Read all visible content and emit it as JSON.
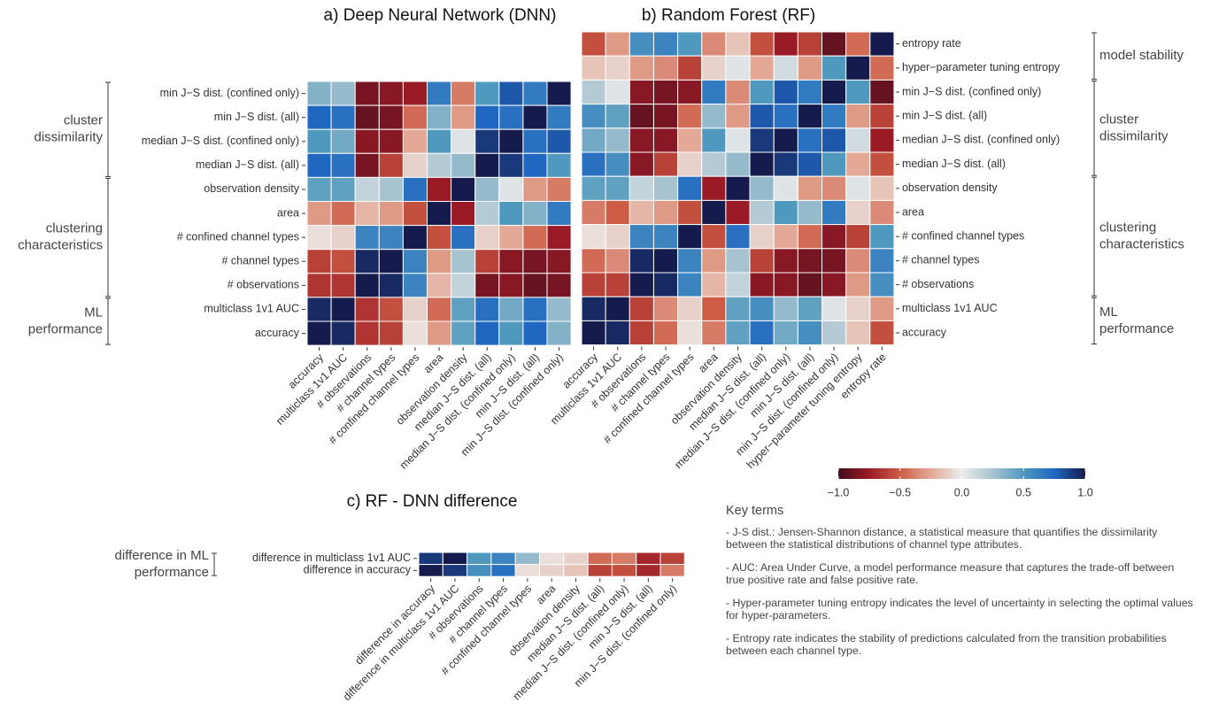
{
  "chart_data": [
    {
      "type": "heatmap",
      "title": "a) Deep Neural Network (DNN)",
      "label_side": "left",
      "rows": [
        "min J−S dist. (confined only)",
        "min J−S dist. (all)",
        "median J−S dist. (confined only)",
        "median J−S dist. (all)",
        "observation density",
        "area",
        "# confined channel types",
        "# channel types",
        "# observations",
        "multiclass 1v1 AUC",
        "accuracy"
      ],
      "columns": [
        "accuracy",
        "multiclass 1v1 AUC",
        "# observations",
        "# channel types",
        "# confined channel types",
        "area",
        "observation density",
        "median J−S dist. (all)",
        "median J−S dist. (confined only)",
        "min J−S dist. (all)",
        "min J−S dist. (confined only)"
      ],
      "groups": [
        {
          "label": [
            "cluster",
            "dissimilarity"
          ],
          "n_rows": 4
        },
        {
          "label": [
            "clustering",
            "characteristics"
          ],
          "n_rows": 5
        },
        {
          "label": [
            "ML",
            "performance"
          ],
          "n_rows": 2
        }
      ],
      "values": [
        [
          0.35,
          0.3,
          -0.85,
          -0.8,
          -0.75,
          0.65,
          -0.4,
          0.5,
          0.8,
          0.65,
          1
        ],
        [
          0.75,
          0.7,
          -0.9,
          -0.85,
          -0.45,
          0.35,
          -0.3,
          0.75,
          0.7,
          1,
          0.65
        ],
        [
          0.5,
          0.4,
          -0.8,
          -0.8,
          -0.25,
          0.5,
          0.05,
          0.9,
          1,
          0.7,
          0.8
        ],
        [
          0.75,
          0.7,
          -0.85,
          -0.6,
          -0.1,
          0.2,
          0.3,
          1,
          0.9,
          0.75,
          0.5
        ],
        [
          0.45,
          0.45,
          0.15,
          0.25,
          0.7,
          -0.75,
          1,
          0.3,
          0.05,
          -0.3,
          -0.4
        ],
        [
          -0.3,
          -0.45,
          -0.2,
          -0.3,
          -0.55,
          1,
          -0.75,
          0.2,
          0.5,
          0.35,
          0.65
        ],
        [
          -0.05,
          -0.1,
          0.6,
          0.6,
          1,
          -0.55,
          0.7,
          -0.1,
          -0.25,
          -0.45,
          -0.75
        ],
        [
          -0.6,
          -0.55,
          0.95,
          1,
          0.6,
          -0.3,
          0.25,
          -0.6,
          -0.8,
          -0.85,
          -0.8
        ],
        [
          -0.65,
          -0.65,
          1,
          0.95,
          0.6,
          -0.2,
          0.15,
          -0.85,
          -0.8,
          -0.9,
          -0.85
        ],
        [
          0.95,
          1,
          -0.65,
          -0.55,
          -0.1,
          -0.45,
          0.45,
          0.7,
          0.4,
          0.7,
          0.3
        ],
        [
          1,
          0.95,
          -0.65,
          -0.6,
          -0.05,
          -0.3,
          0.45,
          0.75,
          0.5,
          0.75,
          0.35
        ]
      ]
    },
    {
      "type": "heatmap",
      "title": "b) Random Forest (RF)",
      "label_side": "right",
      "rows": [
        "entropy rate",
        "hyper−parameter tuning entropy",
        "min J−S dist. (confined only)",
        "min J−S dist. (all)",
        "median J−S dist. (confined only)",
        "median J−S dist. (all)",
        "observation density",
        "area",
        "# confined channel types",
        "# channel types",
        "# observations",
        "multiclass 1v1 AUC",
        "accuracy"
      ],
      "columns": [
        "accuracy",
        "multiclass 1v1 AUC",
        "# observations",
        "# channel types",
        "# confined channel types",
        "area",
        "observation density",
        "median J−S dist. (all)",
        "median J−S dist. (confined only)",
        "min J−S dist. (all)",
        "min J−S dist. (confined only)",
        "hyper−parameter tuning entropy",
        "entropy rate"
      ],
      "groups": [
        {
          "label": [
            "model stability"
          ],
          "n_rows": 2
        },
        {
          "label": [
            "cluster",
            "dissimilarity"
          ],
          "n_rows": 4
        },
        {
          "label": [
            "clustering",
            "characteristics"
          ],
          "n_rows": 5
        },
        {
          "label": [
            "ML",
            "performance"
          ],
          "n_rows": 2
        }
      ],
      "values": [
        [
          -0.55,
          -0.3,
          0.55,
          0.6,
          0.5,
          -0.35,
          -0.15,
          -0.55,
          -0.75,
          -0.6,
          -0.9,
          -0.45,
          1
        ],
        [
          -0.15,
          -0.1,
          -0.3,
          -0.35,
          -0.6,
          -0.1,
          0.05,
          -0.25,
          0.1,
          -0.3,
          0.5,
          1,
          -0.45
        ],
        [
          0.2,
          0.05,
          -0.8,
          -0.85,
          -0.8,
          0.65,
          -0.35,
          0.5,
          0.8,
          0.65,
          1,
          0.5,
          -0.9
        ],
        [
          0.55,
          0.45,
          -0.9,
          -0.85,
          -0.45,
          0.3,
          -0.3,
          0.8,
          0.7,
          1,
          0.65,
          -0.3,
          -0.6
        ],
        [
          0.4,
          0.3,
          -0.8,
          -0.8,
          -0.25,
          0.5,
          0.05,
          0.9,
          1,
          0.7,
          0.8,
          0.1,
          -0.75
        ],
        [
          0.7,
          0.55,
          -0.8,
          -0.6,
          -0.1,
          0.2,
          0.3,
          1,
          0.9,
          0.8,
          0.5,
          -0.25,
          -0.55
        ],
        [
          0.45,
          0.45,
          0.15,
          0.25,
          0.7,
          -0.75,
          1,
          0.3,
          0.05,
          -0.3,
          -0.35,
          0.05,
          -0.15
        ],
        [
          -0.4,
          -0.5,
          -0.2,
          -0.3,
          -0.55,
          1,
          -0.75,
          0.2,
          0.5,
          0.3,
          0.65,
          -0.1,
          -0.35
        ],
        [
          -0.05,
          -0.1,
          0.6,
          0.6,
          1,
          -0.55,
          0.7,
          -0.1,
          -0.25,
          -0.45,
          -0.8,
          -0.6,
          0.5
        ],
        [
          -0.45,
          -0.35,
          0.95,
          1,
          0.6,
          -0.3,
          0.25,
          -0.6,
          -0.8,
          -0.85,
          -0.85,
          -0.35,
          0.6
        ],
        [
          -0.6,
          -0.6,
          1,
          0.95,
          0.6,
          -0.2,
          0.15,
          -0.8,
          -0.8,
          -0.9,
          -0.8,
          -0.3,
          0.55
        ],
        [
          0.95,
          1,
          -0.6,
          -0.35,
          -0.1,
          -0.5,
          0.45,
          0.55,
          0.3,
          0.45,
          0.05,
          -0.1,
          -0.3
        ],
        [
          1,
          0.95,
          -0.6,
          -0.45,
          -0.05,
          -0.4,
          0.45,
          0.7,
          0.4,
          0.55,
          0.2,
          -0.15,
          -0.55
        ]
      ]
    },
    {
      "type": "heatmap",
      "title": "c) RF - DNN difference",
      "label_side": "left",
      "rows": [
        "difference in multiclass 1v1 AUC",
        "difference in accuracy"
      ],
      "columns": [
        "difference in accuracy",
        "difference in multiclass 1v1 AUC",
        "# observations",
        "# channel types",
        "# confined channel types",
        "area",
        "observation density",
        "median J−S dist. (all)",
        "median J−S dist. (confined only)",
        "min J−S dist. (all)",
        "min J−S dist. (confined only)"
      ],
      "groups": [
        {
          "label": [
            "difference in ML",
            "performance"
          ],
          "n_rows": 2
        }
      ],
      "values": [
        [
          0.9,
          1,
          0.5,
          0.6,
          0.3,
          -0.05,
          -0.1,
          -0.45,
          -0.4,
          -0.7,
          -0.6
        ],
        [
          1,
          0.9,
          0.55,
          0.7,
          -0.05,
          -0.1,
          -0.15,
          -0.6,
          -0.55,
          -0.7,
          -0.4
        ]
      ]
    }
  ],
  "colorbar": {
    "clim": [
      -1,
      1
    ],
    "ticks": [
      {
        "value": -1,
        "label": "−1.0"
      },
      {
        "value": -0.5,
        "label": "−0.5"
      },
      {
        "value": 0,
        "label": "0.0"
      },
      {
        "value": 0.5,
        "label": "0.5"
      },
      {
        "value": 1,
        "label": "1.0"
      }
    ],
    "colors": [
      "#420d1d",
      "#9a1b25",
      "#cd5c45",
      "#e3a996",
      "#ececec",
      "#a6c3cf",
      "#4f98be",
      "#1f67c1",
      "#161b4d"
    ]
  },
  "key_terms": {
    "title": "Key terms",
    "items": [
      "- J-S dist.: Jensen-Shannon distance, a statistical measure that quantifies the dissimilarity between the statistical distributions of channel type attributes.",
      "- AUC: Area Under Curve, a model performance measure that captures the trade-off between true positive rate and false positive rate.",
      "- Hyper-parameter tuning entropy indicates the level of uncertainty in selecting the optimal values for hyper-parameters.",
      "- Entropy rate indicates the stability of predictions calculated from the transition probabilities between each channel type."
    ]
  }
}
